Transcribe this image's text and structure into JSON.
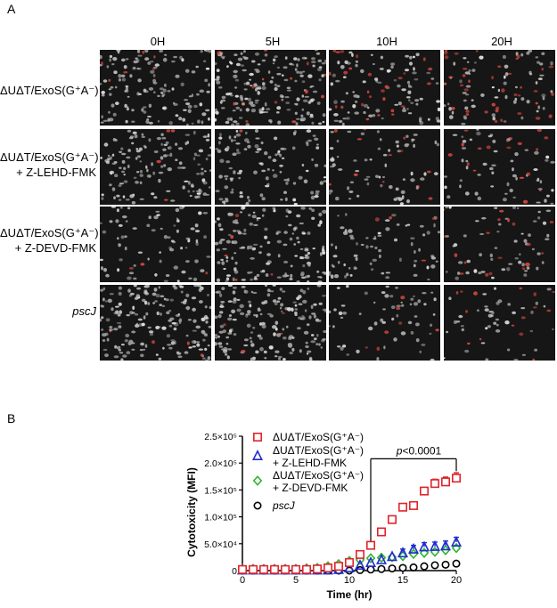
{
  "panel_a": {
    "letter": "A",
    "columns": [
      "0H",
      "5H",
      "10H",
      "20H"
    ],
    "rows": [
      {
        "line1": "ΔUΔT/ExoS(G⁺A⁻)",
        "line2": "",
        "italic": false,
        "red": [
          0.03,
          0.05,
          0.18,
          0.42
        ],
        "density": [
          0.55,
          0.75,
          0.45,
          0.4
        ]
      },
      {
        "line1": "ΔUΔT/ExoS(G⁺A⁻)",
        "line2": "+ Z-LEHD-FMK",
        "italic": false,
        "red": [
          0.02,
          0.03,
          0.1,
          0.28
        ],
        "density": [
          0.55,
          0.45,
          0.3,
          0.28
        ]
      },
      {
        "line1": "ΔUΔT/ExoS(G⁺A⁻)",
        "line2": "+ Z-DEVD-FMK",
        "italic": false,
        "red": [
          0.05,
          0.04,
          0.1,
          0.22
        ],
        "density": [
          0.3,
          0.6,
          0.3,
          0.28
        ]
      },
      {
        "line1": "pscJ",
        "line2": "",
        "italic": true,
        "red": [
          0.02,
          0.02,
          0.08,
          0.2
        ],
        "density": [
          0.7,
          0.7,
          0.25,
          0.22
        ]
      }
    ]
  },
  "panel_b": {
    "letter": "B",
    "pvalue_label": "p<0.0001"
  },
  "colors": {
    "red": "#e0252b",
    "blue": "#1f2bd0",
    "green": "#2fb52f",
    "black": "#000000"
  },
  "chart_data": {
    "type": "scatter",
    "xlabel": "Time (hr)",
    "ylabel": "Cytotoxicity (MFI)",
    "xlim": [
      0,
      20
    ],
    "ylim": [
      0,
      250000
    ],
    "xticks": [
      0,
      5,
      10,
      15,
      20
    ],
    "yticks": [
      {
        "value": 0,
        "label": "0"
      },
      {
        "value": 50000,
        "label": "5.0×10⁴"
      },
      {
        "value": 100000,
        "label": "1.0×10⁵"
      },
      {
        "value": 150000,
        "label": "1.5×10⁵"
      },
      {
        "value": 200000,
        "label": "2.0×10⁵"
      },
      {
        "value": 250000,
        "label": "2.5×10⁵"
      }
    ],
    "x": [
      0,
      1,
      2,
      3,
      4,
      5,
      6,
      7,
      8,
      9,
      10,
      11,
      12,
      13,
      14,
      15,
      16,
      17,
      18,
      19,
      20
    ],
    "series": [
      {
        "name": "ΔUΔT/ExoS(G⁺A⁻)",
        "line2": "",
        "marker": "square",
        "color": "#e0252b",
        "values": [
          2000,
          2000,
          2000,
          2000,
          2000,
          2000,
          2000,
          3000,
          5000,
          8000,
          15000,
          30000,
          47000,
          72000,
          95000,
          118000,
          121000,
          148000,
          162000,
          165000,
          172000
        ],
        "errors": [
          1000,
          1000,
          1000,
          1000,
          1000,
          1000,
          1000,
          1000,
          1500,
          2000,
          3000,
          3000,
          3000,
          3000,
          4000,
          6000,
          6000,
          7000,
          8000,
          9000,
          10000
        ]
      },
      {
        "name": "ΔUΔT/ExoS(G⁺A⁻)",
        "line2": "+ Z-LEHD-FMK",
        "marker": "triangle",
        "color": "#1f2bd0",
        "values": [
          1000,
          1000,
          1000,
          1000,
          1000,
          1000,
          1000,
          1000,
          1000,
          2000,
          5000,
          10000,
          15000,
          20000,
          26000,
          33000,
          40000,
          44000,
          45000,
          46000,
          53000
        ],
        "errors": [
          1000,
          1000,
          1000,
          1000,
          1000,
          1000,
          1000,
          1000,
          1000,
          1000,
          2000,
          3000,
          4000,
          5000,
          6000,
          7000,
          7000,
          8000,
          8000,
          9000,
          9000
        ]
      },
      {
        "name": "ΔUΔT/ExoS(G⁺A⁻)",
        "line2": "+ Z-DEVD-FMK",
        "marker": "diamond",
        "color": "#2fb52f",
        "values": [
          3000,
          3000,
          3000,
          3000,
          3000,
          3000,
          4000,
          5000,
          8000,
          12000,
          18000,
          20000,
          23000,
          24000,
          25000,
          27000,
          31000,
          33000,
          35000,
          38000,
          42000
        ],
        "errors": [
          1000,
          1000,
          1000,
          1000,
          1000,
          1000,
          1000,
          1500,
          2000,
          3000,
          4000,
          5000,
          6000,
          6000,
          6000,
          6000,
          6000,
          6000,
          6000,
          6000,
          6000
        ]
      },
      {
        "name": "pscJ",
        "line2": "",
        "marker": "circle",
        "color": "#000000",
        "values": [
          0,
          0,
          0,
          0,
          0,
          0,
          0,
          0,
          0,
          0,
          0,
          1000,
          2000,
          3000,
          4000,
          5000,
          6000,
          8000,
          10000,
          11000,
          13000
        ],
        "errors": [
          500,
          500,
          500,
          500,
          500,
          500,
          500,
          500,
          500,
          500,
          500,
          500,
          800,
          800,
          1000,
          1000,
          1000,
          1000,
          1000,
          1000,
          1500
        ]
      }
    ],
    "annotation": {
      "text": "p<0.0001",
      "from_x": 12,
      "to_x": 20
    }
  }
}
